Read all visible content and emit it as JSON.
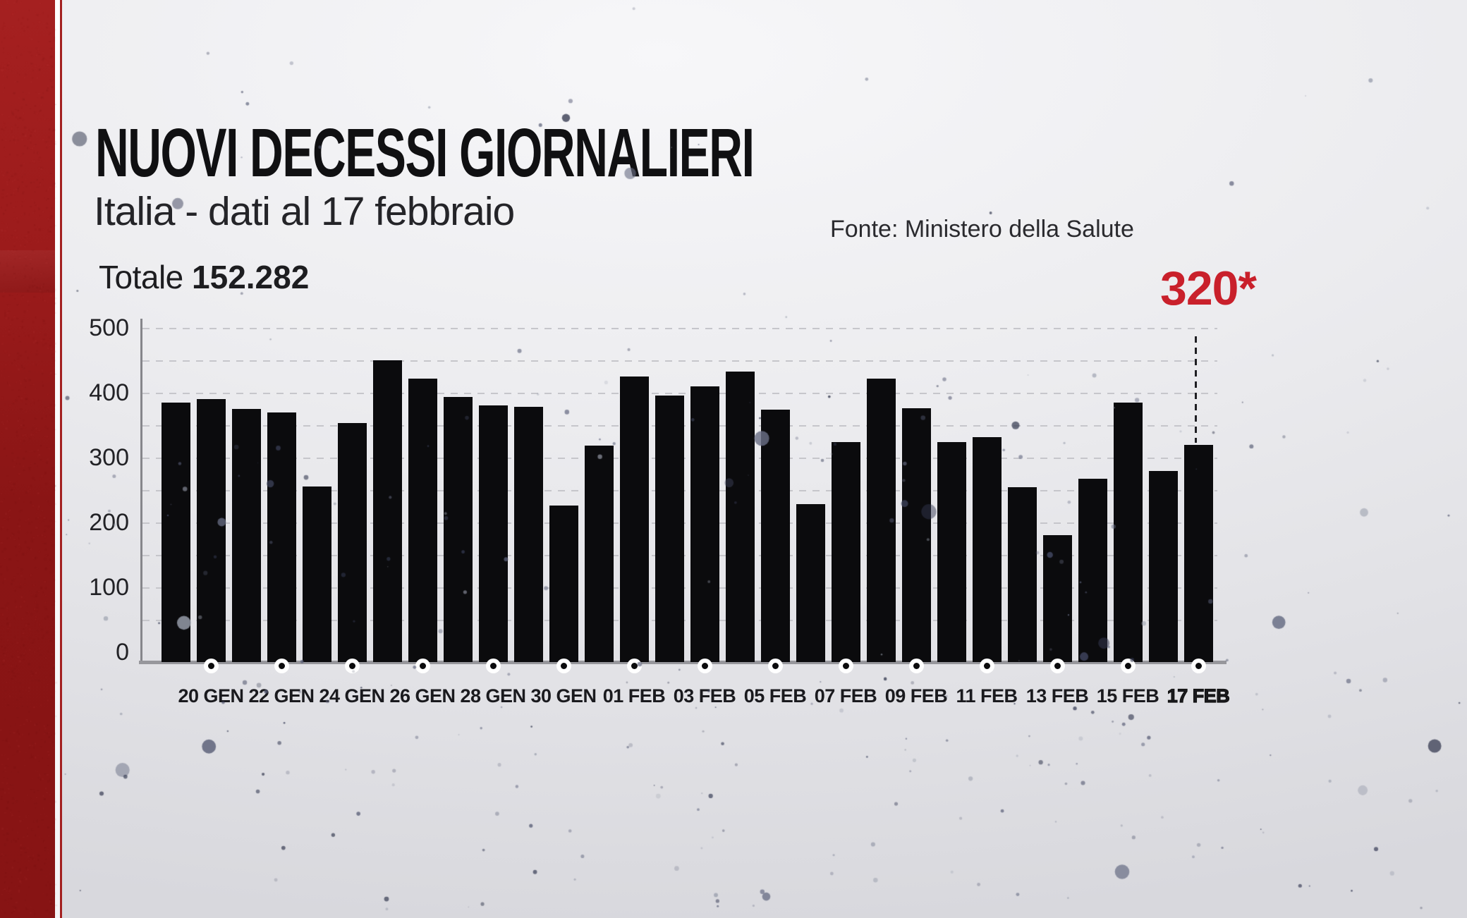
{
  "header": {
    "title": "NUOVI DECESSI GIORNALIERI",
    "subtitle": "Italia - dati al 17 febbraio",
    "source": "Fonte: Ministero della Salute",
    "total_label": "Totale",
    "total_value": "152.282"
  },
  "annotation": {
    "text": "320*",
    "color": "#c9202b"
  },
  "colors": {
    "bar": "#0b0b0d",
    "sidebar_red": "#9c1b1b",
    "accent_red": "#c9202b",
    "grid": "#c6c6cb",
    "axis": "#86868b",
    "background": "#e9e9ed"
  },
  "chart_data": {
    "type": "bar",
    "title": "NUOVI DECESSI GIORNALIERI",
    "xlabel": "",
    "ylabel": "",
    "x": [
      "19 GEN",
      "20 GEN",
      "21 GEN",
      "22 GEN",
      "23 GEN",
      "24 GEN",
      "25 GEN",
      "26 GEN",
      "27 GEN",
      "28 GEN",
      "29 GEN",
      "30 GEN",
      "31 GEN",
      "01 FEB",
      "02 FEB",
      "03 FEB",
      "04 FEB",
      "05 FEB",
      "06 FEB",
      "07 FEB",
      "08 FEB",
      "09 FEB",
      "10 FEB",
      "11 FEB",
      "12 FEB",
      "13 FEB",
      "14 FEB",
      "15 FEB",
      "16 FEB",
      "17 FEB"
    ],
    "values": [
      385,
      390,
      375,
      370,
      255,
      353,
      450,
      422,
      393,
      380,
      378,
      226,
      318,
      425,
      396,
      410,
      433,
      374,
      228,
      324,
      422,
      376,
      324,
      332,
      254,
      180,
      267,
      385,
      279,
      320
    ],
    "x_tick_labels": [
      "20 GEN",
      "22 GEN",
      "24 GEN",
      "26 GEN",
      "28 GEN",
      "30 GEN",
      "01 FEB",
      "03 FEB",
      "05 FEB",
      "07 FEB",
      "09 FEB",
      "11 FEB",
      "13 FEB",
      "15 FEB",
      "17 FEB"
    ],
    "y_ticks": [
      0,
      100,
      200,
      300,
      400,
      500
    ],
    "ylim": [
      0,
      500
    ],
    "gridline_step": 50,
    "grid_style": "dashed",
    "legend_position": "none",
    "last_bar_annotation": "320*"
  }
}
